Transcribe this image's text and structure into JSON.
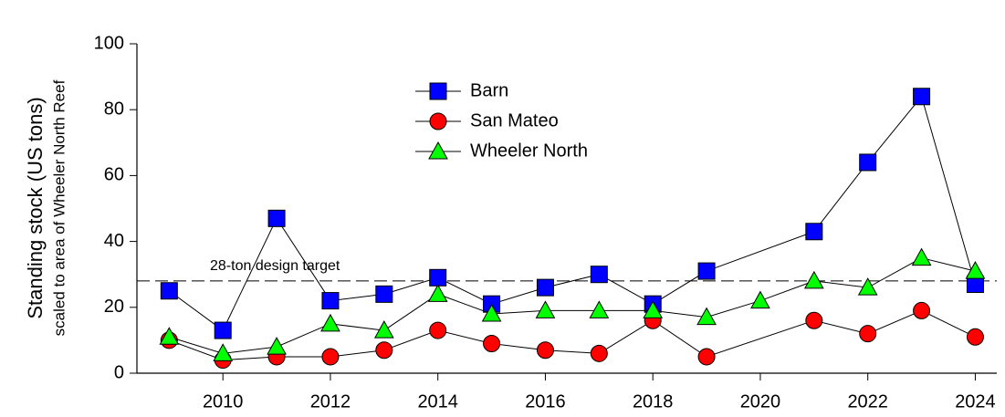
{
  "chart_data": {
    "type": "line",
    "y_label": "Standing stock (US tons)",
    "y_sublabel": "scaled to area of Wheeler North Reef",
    "xlim": [
      2008.4,
      2024.4
    ],
    "xticks": [
      2010,
      2012,
      2014,
      2016,
      2018,
      2020,
      2022,
      2024
    ],
    "ylim": [
      0,
      100
    ],
    "yticks": [
      0,
      20,
      40,
      60,
      80,
      100
    ],
    "reference_line": {
      "value": 28,
      "label": "28-ton design target"
    },
    "series": [
      {
        "name": "Barn",
        "color": "#0000ff",
        "marker": "square",
        "x": [
          2009,
          2010,
          2011,
          2012,
          2013,
          2014,
          2015,
          2016,
          2017,
          2018,
          2019,
          2021,
          2022,
          2023,
          2024
        ],
        "values": [
          25,
          13,
          47,
          22,
          24,
          29,
          21,
          26,
          30,
          21,
          31,
          43,
          64,
          84,
          27
        ]
      },
      {
        "name": "San Mateo",
        "color": "#ff0000",
        "marker": "circle",
        "x": [
          2009,
          2010,
          2011,
          2012,
          2013,
          2014,
          2015,
          2016,
          2017,
          2018,
          2019,
          2021,
          2022,
          2023,
          2024
        ],
        "values": [
          10,
          4,
          5,
          5,
          7,
          13,
          9,
          7,
          6,
          16,
          5,
          16,
          12,
          19,
          11
        ]
      },
      {
        "name": "Wheeler North",
        "color": "#00ff00",
        "marker": "triangle",
        "x": [
          2009,
          2010,
          2011,
          2012,
          2013,
          2014,
          2015,
          2016,
          2017,
          2018,
          2019,
          2020,
          2021,
          2022,
          2023,
          2024
        ],
        "values": [
          11,
          6,
          8,
          15,
          13,
          24,
          18,
          19,
          19,
          19,
          17,
          22,
          28,
          26,
          35,
          31
        ]
      }
    ]
  }
}
